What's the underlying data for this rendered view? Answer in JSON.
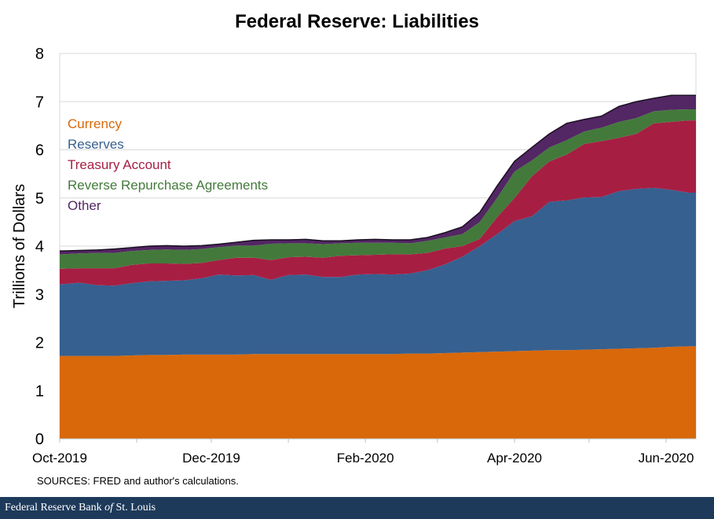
{
  "footer": {
    "prefix": "Federal Reserve Bank ",
    "of": "of",
    "suffix": " St. Louis"
  },
  "sources": "SOURCES: FRED and author's calculations.",
  "chart_data": {
    "type": "area",
    "stacked": true,
    "title": "Federal Reserve: Liabilities",
    "xlabel": "",
    "ylabel": "Trillions of Dollars",
    "ylim": [
      0,
      8
    ],
    "yticks": [
      0,
      1,
      2,
      3,
      4,
      5,
      6,
      7,
      8
    ],
    "xticks": [
      {
        "date": "2019-10-01",
        "label": "Oct-2019"
      },
      {
        "date": "2019-11-01",
        "label": ""
      },
      {
        "date": "2019-12-01",
        "label": "Dec-2019"
      },
      {
        "date": "2020-01-01",
        "label": ""
      },
      {
        "date": "2020-02-01",
        "label": "Feb-2020"
      },
      {
        "date": "2020-03-01",
        "label": ""
      },
      {
        "date": "2020-04-01",
        "label": "Apr-2020"
      },
      {
        "date": "2020-05-01",
        "label": ""
      },
      {
        "date": "2020-06-01",
        "label": "Jun-2020"
      }
    ],
    "xlim": [
      "2019-10-01",
      "2020-06-13"
    ],
    "grid": true,
    "legend_placement": "top-left",
    "x": [
      "2019-10-02",
      "2019-10-09",
      "2019-10-16",
      "2019-10-23",
      "2019-10-30",
      "2019-11-06",
      "2019-11-13",
      "2019-11-20",
      "2019-11-27",
      "2019-12-04",
      "2019-12-11",
      "2019-12-18",
      "2019-12-25",
      "2020-01-01",
      "2020-01-08",
      "2020-01-15",
      "2020-01-22",
      "2020-01-29",
      "2020-02-05",
      "2020-02-12",
      "2020-02-19",
      "2020-02-26",
      "2020-03-04",
      "2020-03-11",
      "2020-03-18",
      "2020-03-25",
      "2020-04-01",
      "2020-04-08",
      "2020-04-15",
      "2020-04-22",
      "2020-04-29",
      "2020-05-06",
      "2020-05-13",
      "2020-05-20",
      "2020-05-27",
      "2020-06-03",
      "2020-06-10"
    ],
    "series": [
      {
        "name": "Currency",
        "color": "#d8680a",
        "values": [
          1.72,
          1.72,
          1.72,
          1.72,
          1.73,
          1.74,
          1.74,
          1.75,
          1.75,
          1.75,
          1.75,
          1.76,
          1.76,
          1.76,
          1.76,
          1.76,
          1.76,
          1.76,
          1.76,
          1.76,
          1.77,
          1.77,
          1.78,
          1.79,
          1.8,
          1.81,
          1.82,
          1.83,
          1.84,
          1.84,
          1.85,
          1.86,
          1.87,
          1.88,
          1.89,
          1.91,
          1.92
        ]
      },
      {
        "name": "Reserves",
        "color": "#36608f",
        "values": [
          1.49,
          1.52,
          1.47,
          1.46,
          1.5,
          1.53,
          1.54,
          1.54,
          1.58,
          1.66,
          1.64,
          1.64,
          1.54,
          1.64,
          1.65,
          1.6,
          1.6,
          1.65,
          1.66,
          1.65,
          1.66,
          1.73,
          1.84,
          1.99,
          2.2,
          2.44,
          2.7,
          2.79,
          3.08,
          3.11,
          3.16,
          3.16,
          3.27,
          3.31,
          3.32,
          3.26,
          3.19
        ]
      },
      {
        "name": "Treasury Account",
        "color": "#a71e43",
        "values": [
          0.32,
          0.3,
          0.35,
          0.36,
          0.38,
          0.37,
          0.36,
          0.34,
          0.32,
          0.3,
          0.37,
          0.36,
          0.41,
          0.37,
          0.37,
          0.4,
          0.44,
          0.4,
          0.4,
          0.42,
          0.4,
          0.36,
          0.33,
          0.22,
          0.15,
          0.35,
          0.48,
          0.83,
          0.84,
          0.95,
          1.11,
          1.16,
          1.11,
          1.14,
          1.34,
          1.41,
          1.5
        ]
      },
      {
        "name": "Reverse Repurchase Agreements",
        "color": "#437a3b",
        "values": [
          0.3,
          0.31,
          0.32,
          0.32,
          0.29,
          0.28,
          0.29,
          0.29,
          0.29,
          0.27,
          0.25,
          0.25,
          0.34,
          0.29,
          0.28,
          0.28,
          0.26,
          0.26,
          0.25,
          0.24,
          0.23,
          0.25,
          0.23,
          0.25,
          0.35,
          0.4,
          0.55,
          0.33,
          0.29,
          0.3,
          0.26,
          0.28,
          0.33,
          0.33,
          0.25,
          0.25,
          0.23
        ]
      },
      {
        "name": "Other",
        "color": "#532664",
        "values": [
          0.07,
          0.06,
          0.06,
          0.08,
          0.07,
          0.08,
          0.08,
          0.08,
          0.07,
          0.06,
          0.07,
          0.11,
          0.08,
          0.07,
          0.08,
          0.07,
          0.05,
          0.06,
          0.07,
          0.06,
          0.07,
          0.07,
          0.1,
          0.15,
          0.2,
          0.25,
          0.21,
          0.27,
          0.28,
          0.35,
          0.25,
          0.24,
          0.32,
          0.34,
          0.27,
          0.3,
          0.29
        ]
      }
    ]
  }
}
